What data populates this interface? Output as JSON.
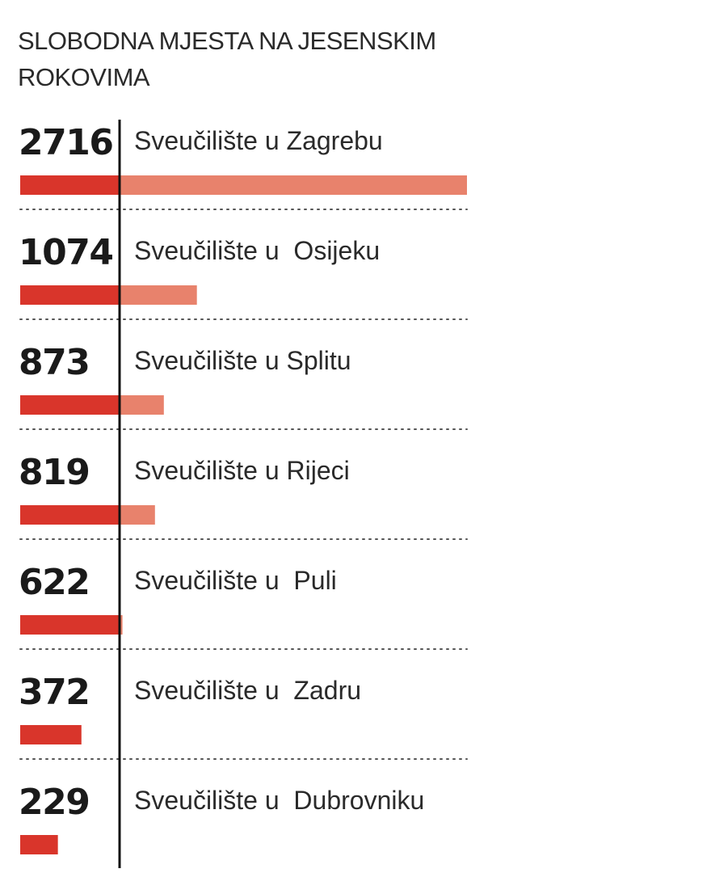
{
  "chart_data": {
    "type": "bar",
    "title": "SLOBODNA MJESTA NA JESENSKIM ROKOVIMA",
    "categories": [
      "Sveučilište u Zagrebu",
      "Sveučilište u  Osijeku",
      "Sveučilište u Splitu",
      "Sveučilište u Rijeci",
      "Sveučilište u  Puli",
      "Sveučilište u  Zadru",
      "Sveučilište u  Dubrovniku"
    ],
    "values": [
      2716,
      1074,
      873,
      819,
      622,
      372,
      229
    ],
    "value_labels": [
      "2716",
      "1074",
      "873",
      "819",
      "622",
      "372",
      "229"
    ],
    "orientation": "horizontal",
    "xlim": [
      0,
      2716
    ],
    "grid": false,
    "colors": {
      "bar_base": "#d9352b",
      "bar_value": "#e8826c",
      "axis": "#111111",
      "separator": "#555555"
    }
  }
}
